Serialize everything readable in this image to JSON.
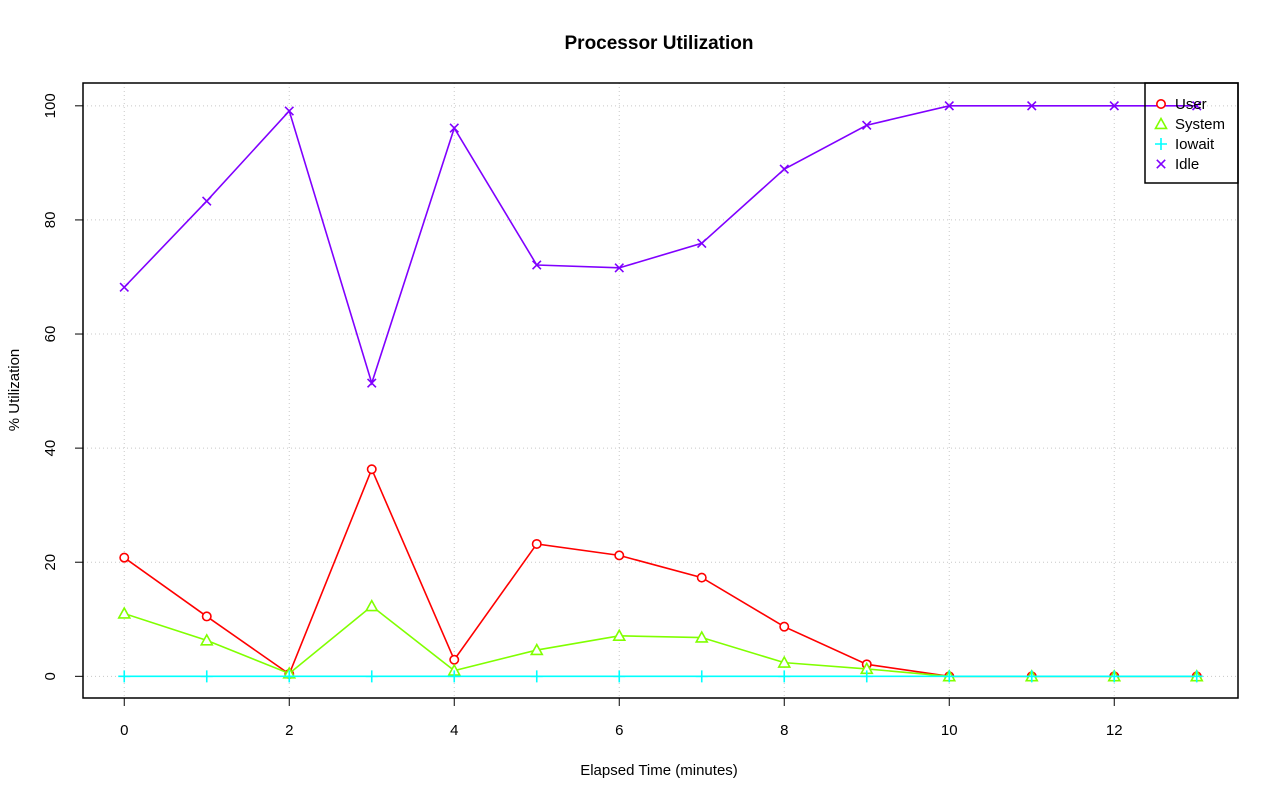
{
  "chart_data": {
    "type": "line",
    "title": "Processor Utilization",
    "xlabel": "Elapsed Time (minutes)",
    "ylabel": "% Utilization",
    "xlim": [
      -0.5,
      13.5
    ],
    "ylim": [
      -3.8,
      104
    ],
    "x_ticks": [
      0,
      2,
      4,
      6,
      8,
      10,
      12
    ],
    "y_ticks": [
      0,
      20,
      40,
      60,
      80,
      100
    ],
    "grid": true,
    "legend_position": "top-right",
    "x": [
      0,
      1,
      2,
      3,
      4,
      5,
      6,
      7,
      8,
      9,
      10,
      11,
      12,
      13
    ],
    "series": [
      {
        "name": "User",
        "color": "#ff0000",
        "marker": "circle",
        "values": [
          20.8,
          10.5,
          0.4,
          36.3,
          2.9,
          23.2,
          21.2,
          17.3,
          8.7,
          2.1,
          0,
          0,
          0,
          0
        ]
      },
      {
        "name": "System",
        "color": "#80ff00",
        "marker": "triangle",
        "values": [
          11.0,
          6.3,
          0.5,
          12.3,
          1.0,
          4.6,
          7.1,
          6.8,
          2.4,
          1.3,
          0,
          0,
          0,
          0
        ]
      },
      {
        "name": "Iowait",
        "color": "#00ffff",
        "marker": "plus",
        "values": [
          0,
          0,
          0,
          0,
          0,
          0,
          0,
          0,
          0,
          0,
          0,
          0,
          0,
          0
        ]
      },
      {
        "name": "Idle",
        "color": "#8000ff",
        "marker": "cross",
        "values": [
          68.2,
          83.3,
          99.1,
          51.4,
          96.1,
          72.1,
          71.6,
          75.9,
          88.9,
          96.6,
          100,
          100,
          100,
          100
        ]
      }
    ]
  }
}
